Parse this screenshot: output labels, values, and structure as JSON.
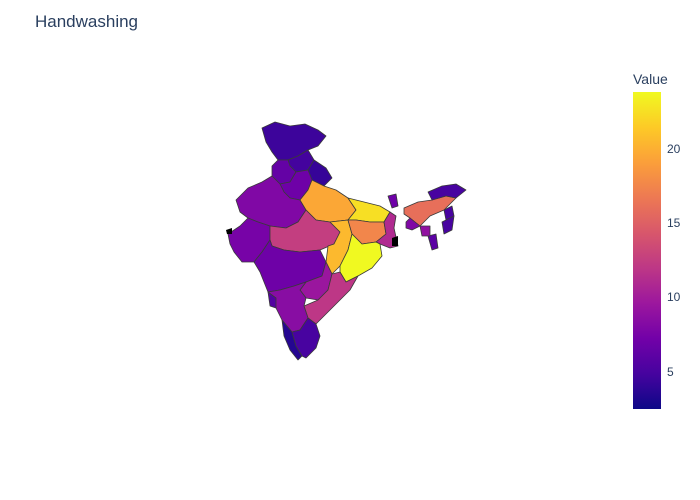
{
  "title": "Handwashing",
  "colorbar": {
    "title": "Value",
    "min": 2.5,
    "max": 23.8,
    "ticks": [
      5,
      10,
      15,
      20
    ],
    "colorscale": [
      "#0d0887",
      "#46039f",
      "#7201a8",
      "#9c179e",
      "#bd3786",
      "#d8576b",
      "#ed7953",
      "#fb9f3a",
      "#fdca26",
      "#f0f921"
    ]
  },
  "chart_data": {
    "type": "choropleth",
    "title": "Handwashing",
    "colorbar_title": "Value",
    "range": [
      2.5,
      23.8
    ],
    "regions": [
      {
        "region": "Jammu and Kashmir",
        "value": 4.5
      },
      {
        "region": "Himachal Pradesh",
        "value": 4.8
      },
      {
        "region": "Punjab",
        "value": 6.5
      },
      {
        "region": "Uttarakhand",
        "value": 4.2
      },
      {
        "region": "Haryana",
        "value": 7.0
      },
      {
        "region": "Rajasthan",
        "value": 8.0
      },
      {
        "region": "Uttar Pradesh",
        "value": 19.5
      },
      {
        "region": "Bihar",
        "value": 22.5
      },
      {
        "region": "Gujarat",
        "value": 7.5
      },
      {
        "region": "Madhya Pradesh",
        "value": 12.5
      },
      {
        "region": "Chhattisgarh",
        "value": 20.5
      },
      {
        "region": "Jharkhand",
        "value": 17.5
      },
      {
        "region": "West Bengal",
        "value": 11.0
      },
      {
        "region": "Odisha",
        "value": 23.8
      },
      {
        "region": "Maharashtra",
        "value": 7.0
      },
      {
        "region": "Telangana",
        "value": 9.5
      },
      {
        "region": "Andhra Pradesh",
        "value": 12.0
      },
      {
        "region": "Karnataka",
        "value": 8.5
      },
      {
        "region": "Goa",
        "value": 5.5
      },
      {
        "region": "Kerala",
        "value": 3.5
      },
      {
        "region": "Tamil Nadu",
        "value": 5.0
      },
      {
        "region": "Sikkim",
        "value": 7.0
      },
      {
        "region": "Assam",
        "value": 16.0
      },
      {
        "region": "Arunachal Pradesh",
        "value": 5.0
      },
      {
        "region": "Meghalaya",
        "value": 8.0
      },
      {
        "region": "Nagaland",
        "value": 5.0
      },
      {
        "region": "Manipur",
        "value": 5.0
      },
      {
        "region": "Mizoram",
        "value": 6.0
      },
      {
        "region": "Tripura",
        "value": 9.0
      }
    ]
  }
}
